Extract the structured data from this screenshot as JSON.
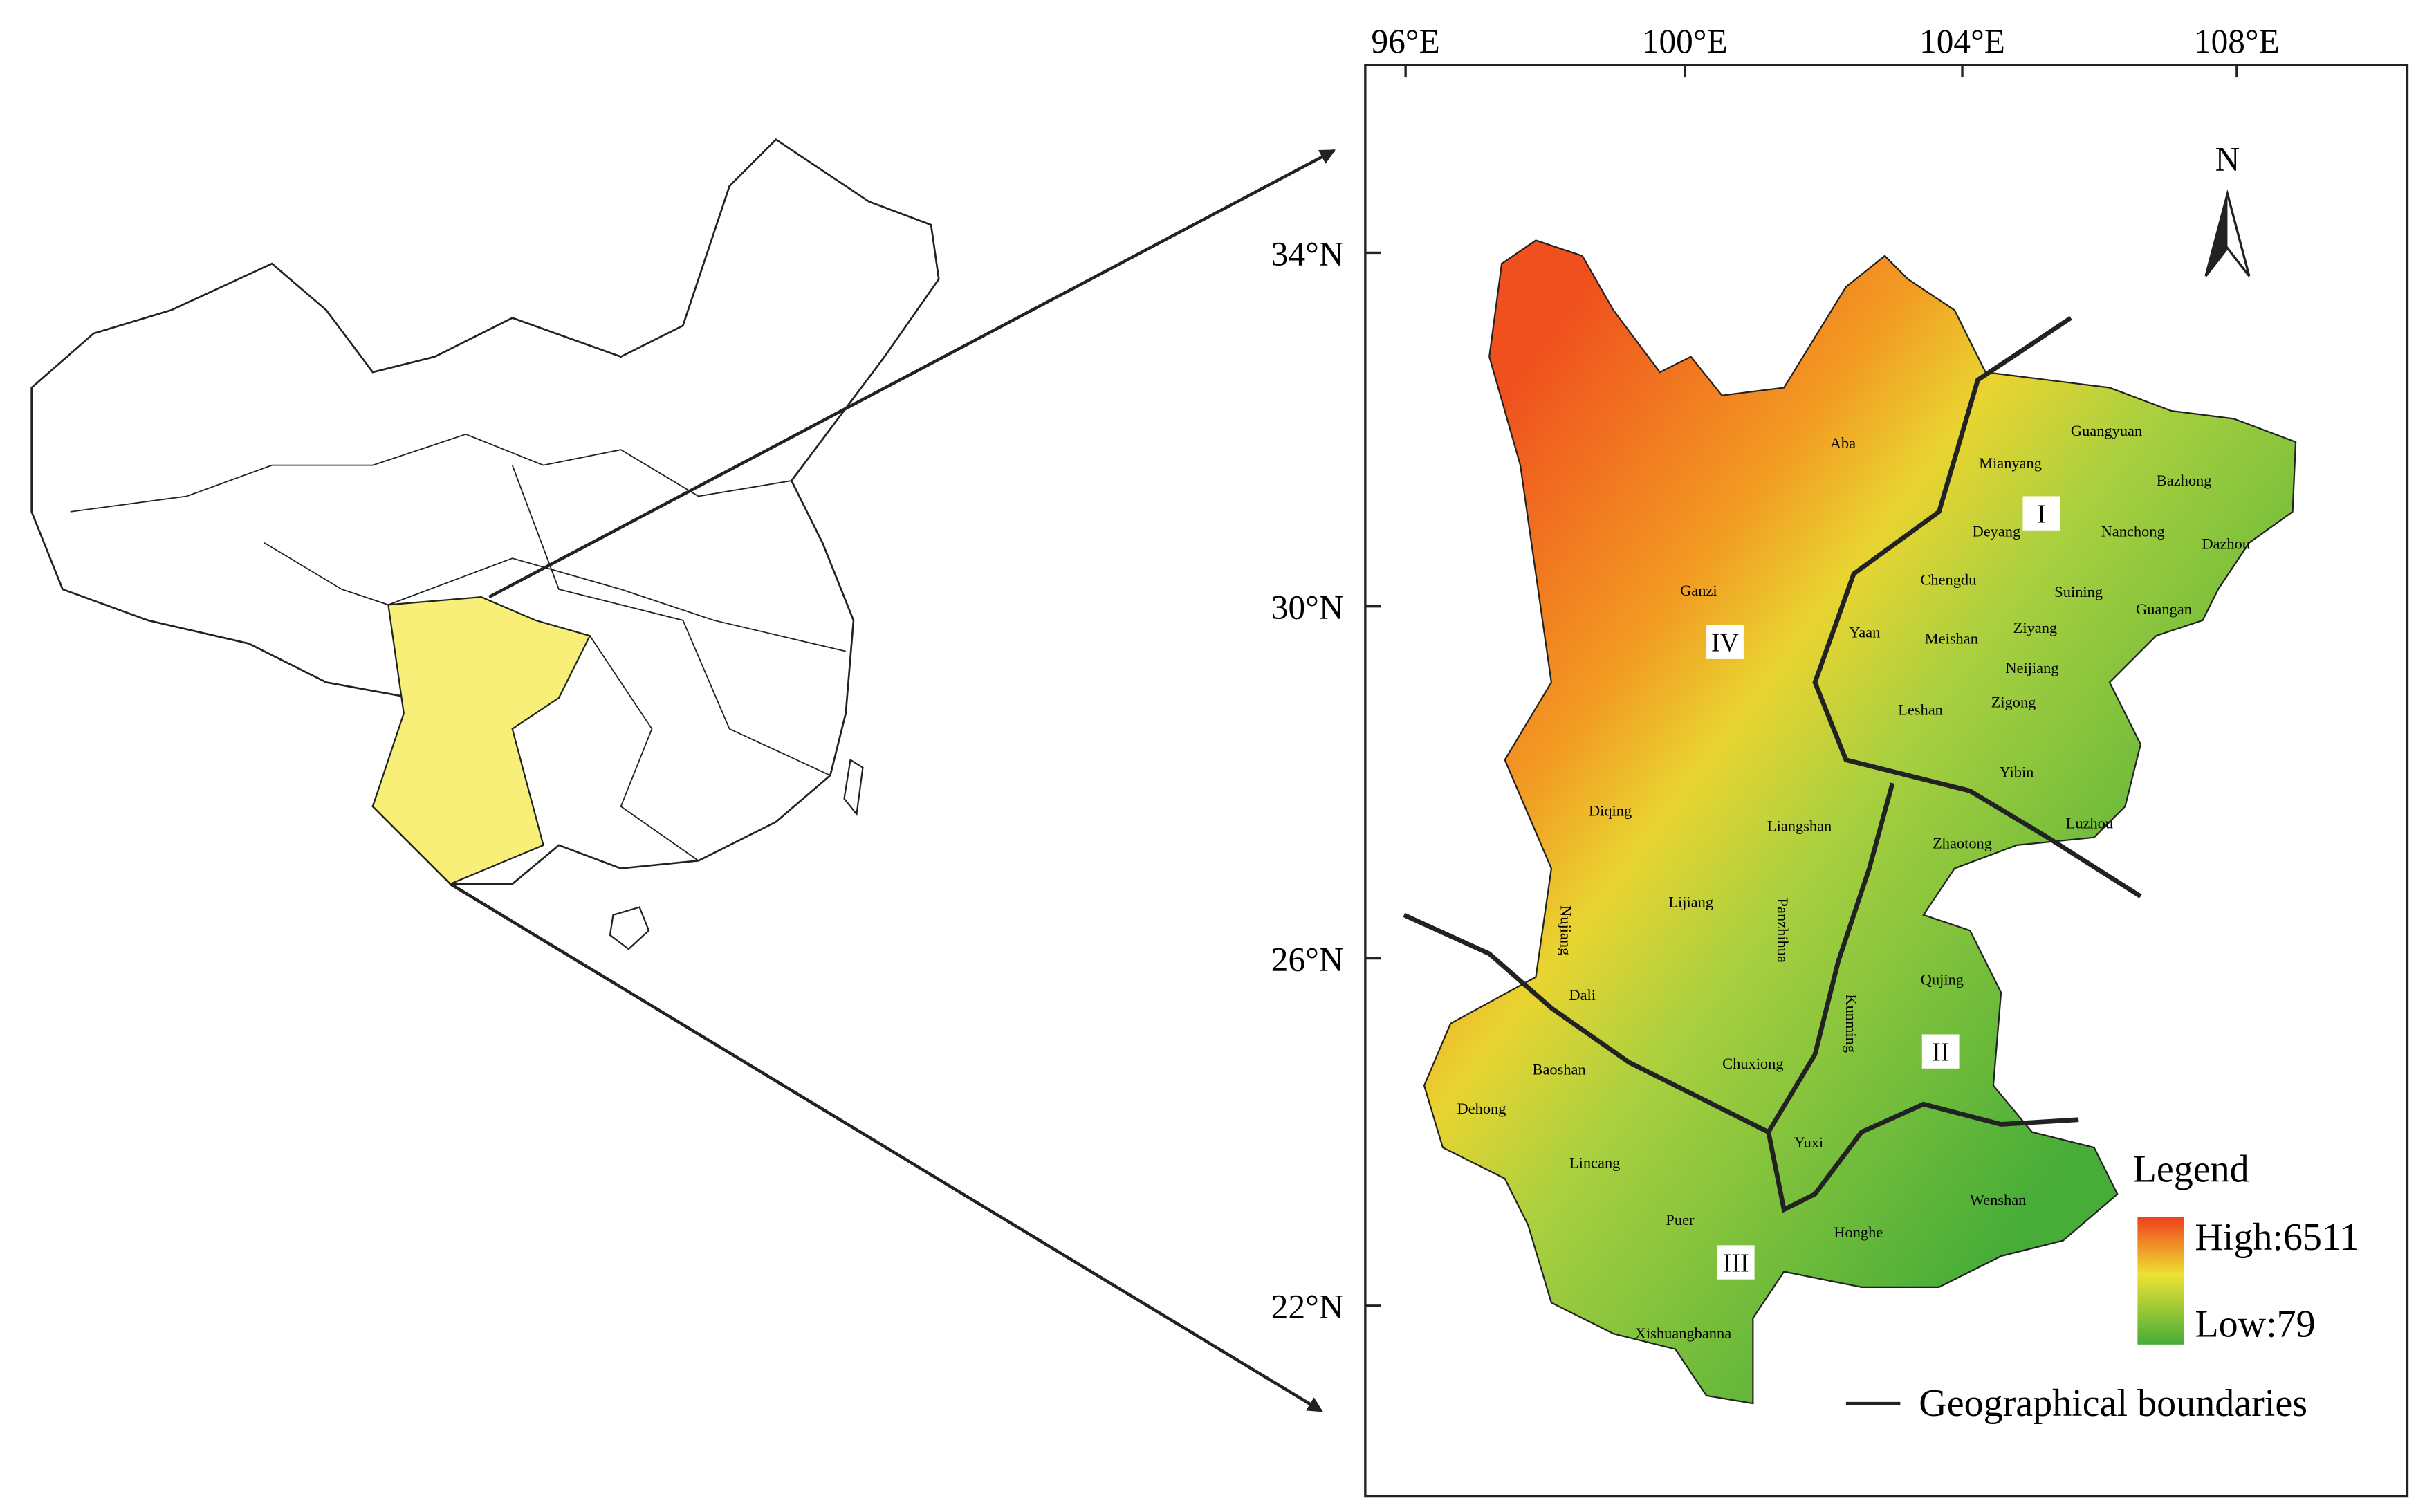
{
  "map": {
    "lon_labels": [
      "96°E",
      "100°E",
      "104°E",
      "108°E"
    ],
    "lat_labels": [
      "34°N",
      "30°N",
      "26°N",
      "22°N"
    ],
    "north": "N",
    "places": [
      "Aba",
      "Guangyuan",
      "Mianyang",
      "Bazhong",
      "Deyang",
      "Nanchong",
      "Dazhou",
      "Chengdu",
      "Suining",
      "Guangan",
      "Ganzi",
      "Yaan",
      "Meishan",
      "Ziyang",
      "Neijiang",
      "Zigong",
      "Leshan",
      "Yibin",
      "Luzhou",
      "Diqing",
      "Liangshan",
      "Zhaotong",
      "Lijiang",
      "Panzhihua",
      "Nujiang",
      "Qujing",
      "Dali",
      "Kunming",
      "Chuxiong",
      "Baoshan",
      "Dehong",
      "Yuxi",
      "Lincang",
      "Wenshan",
      "Puer",
      "Honghe",
      "Xishuangbanna"
    ],
    "regions": [
      "I",
      "II",
      "III",
      "IV"
    ],
    "legend": {
      "title": "Legend",
      "high": "High:6511",
      "low": "Low:79",
      "boundary": "Geographical boundaries"
    }
  }
}
